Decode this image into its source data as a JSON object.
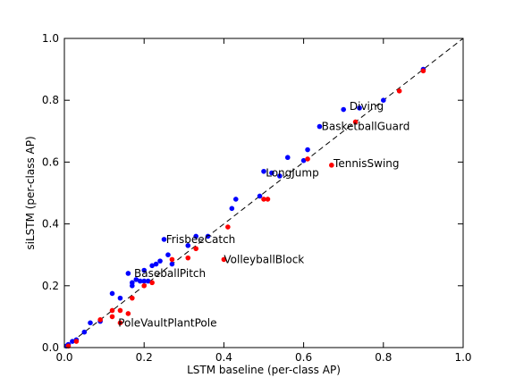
{
  "chart_data": {
    "type": "scatter",
    "xlabel": "LSTM baseline (per-class AP)",
    "ylabel": "siLSTM (per-class AP)",
    "xlim": [
      0,
      1
    ],
    "ylim": [
      0,
      1
    ],
    "xticks": [
      "0.0",
      "0.2",
      "0.4",
      "0.6",
      "0.8",
      "1.0"
    ],
    "yticks": [
      "0.0",
      "0.2",
      "0.4",
      "0.6",
      "0.8",
      "1.0"
    ],
    "grid": false,
    "reference_line": {
      "style": "dashed",
      "from": [
        0,
        0
      ],
      "to": [
        1,
        1
      ],
      "color": "#000000"
    },
    "series": [
      {
        "color": "#0000ff",
        "points": [
          [
            0.005,
            0.005
          ],
          [
            0.01,
            0.01
          ],
          [
            0.02,
            0.02
          ],
          [
            0.03,
            0.025
          ],
          [
            0.05,
            0.05
          ],
          [
            0.065,
            0.08
          ],
          [
            0.09,
            0.085
          ],
          [
            0.12,
            0.175
          ],
          [
            0.14,
            0.16
          ],
          [
            0.16,
            0.24
          ],
          [
            0.17,
            0.2
          ],
          [
            0.17,
            0.21
          ],
          [
            0.18,
            0.22
          ],
          [
            0.19,
            0.215
          ],
          [
            0.2,
            0.215
          ],
          [
            0.2,
            0.25
          ],
          [
            0.21,
            0.215
          ],
          [
            0.22,
            0.265
          ],
          [
            0.23,
            0.27
          ],
          [
            0.24,
            0.28
          ],
          [
            0.25,
            0.35
          ],
          [
            0.26,
            0.3
          ],
          [
            0.27,
            0.27
          ],
          [
            0.31,
            0.33
          ],
          [
            0.33,
            0.36
          ],
          [
            0.36,
            0.36
          ],
          [
            0.42,
            0.45
          ],
          [
            0.43,
            0.48
          ],
          [
            0.49,
            0.49
          ],
          [
            0.5,
            0.57
          ],
          [
            0.52,
            0.565
          ],
          [
            0.54,
            0.555
          ],
          [
            0.56,
            0.615
          ],
          [
            0.6,
            0.605
          ],
          [
            0.61,
            0.64
          ],
          [
            0.64,
            0.715
          ],
          [
            0.7,
            0.77
          ],
          [
            0.74,
            0.775
          ],
          [
            0.8,
            0.8
          ],
          [
            0.9,
            0.9
          ]
        ]
      },
      {
        "color": "#ff0000",
        "points": [
          [
            0.01,
            0.005
          ],
          [
            0.03,
            0.02
          ],
          [
            0.09,
            0.09
          ],
          [
            0.12,
            0.12
          ],
          [
            0.12,
            0.1
          ],
          [
            0.14,
            0.08
          ],
          [
            0.14,
            0.12
          ],
          [
            0.16,
            0.11
          ],
          [
            0.17,
            0.16
          ],
          [
            0.2,
            0.2
          ],
          [
            0.22,
            0.21
          ],
          [
            0.27,
            0.285
          ],
          [
            0.31,
            0.29
          ],
          [
            0.33,
            0.32
          ],
          [
            0.4,
            0.285
          ],
          [
            0.41,
            0.39
          ],
          [
            0.5,
            0.48
          ],
          [
            0.51,
            0.48
          ],
          [
            0.61,
            0.61
          ],
          [
            0.67,
            0.59
          ],
          [
            0.73,
            0.73
          ],
          [
            0.84,
            0.83
          ],
          [
            0.9,
            0.895
          ]
        ]
      }
    ],
    "annotations": [
      {
        "text": "Diving",
        "x": 0.715,
        "y": 0.78
      },
      {
        "text": "BasketballGuard",
        "x": 0.645,
        "y": 0.715
      },
      {
        "text": "TennisSwing",
        "x": 0.675,
        "y": 0.595
      },
      {
        "text": "LongJump",
        "x": 0.505,
        "y": 0.565
      },
      {
        "text": "FrisbeeCatch",
        "x": 0.255,
        "y": 0.35
      },
      {
        "text": "VolleyballBlock",
        "x": 0.4,
        "y": 0.285
      },
      {
        "text": "BaseballPitch",
        "x": 0.175,
        "y": 0.24
      },
      {
        "text": "PoleVaultPlantPole",
        "x": 0.135,
        "y": 0.08
      }
    ]
  }
}
